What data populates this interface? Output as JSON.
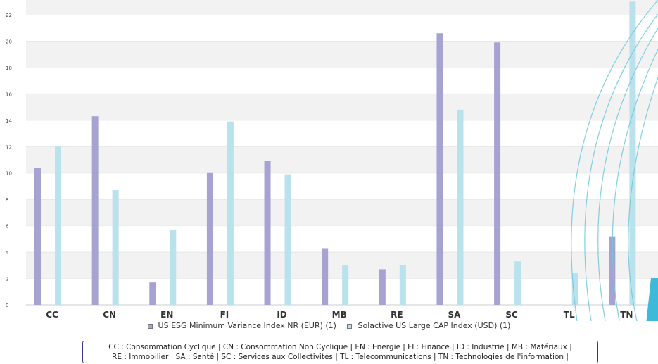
{
  "chart_data": {
    "type": "bar",
    "categories": [
      "CC",
      "CN",
      "EN",
      "FI",
      "ID",
      "MB",
      "RE",
      "SA",
      "SC",
      "TL",
      "TN"
    ],
    "series": [
      {
        "name": "US ESG Minimum Variance Index NR (EUR) (1)",
        "color": "#a6a2d2",
        "values": [
          10.4,
          14.3,
          1.7,
          10.0,
          10.9,
          4.3,
          2.7,
          20.6,
          19.9,
          null,
          5.2
        ]
      },
      {
        "name": "Solactive US Large CAP Index (USD) (1)",
        "color": "#b9e2ec",
        "values": [
          12.0,
          8.7,
          5.7,
          13.9,
          9.9,
          3.0,
          3.0,
          14.8,
          3.3,
          2.4,
          23.0
        ]
      }
    ],
    "ylim": [
      0,
      22
    ],
    "yticks": [
      0,
      2,
      4,
      6,
      8,
      10,
      12,
      14,
      16,
      18,
      20,
      22
    ],
    "grid": true,
    "legend_position": "bottom",
    "title_fragment": "(…)"
  },
  "legend": {
    "item1": "US ESG Minimum Variance Index NR (EUR) (1)",
    "item2": "Solactive US Large CAP Index (USD) (1)"
  },
  "abbreviations": {
    "line1": "CC : Consommation Cyclique | CN : Consommation Non Cyclique | EN : Energie | FI : Finance | ID : Industrie | MB : Matériaux |",
    "line2": "RE : Immobilier | SA : Santé | SC : Services aux Collectivités | TL : Telecommunications | TN : Technologies de l'information |"
  }
}
